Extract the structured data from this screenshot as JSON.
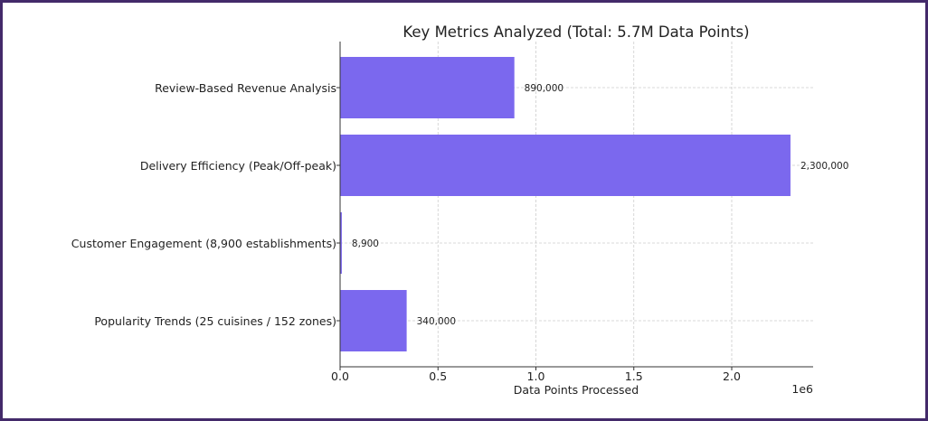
{
  "chart_data": {
    "type": "bar",
    "orientation": "horizontal",
    "title": "Key Metrics Analyzed (Total: 5.7M Data Points)",
    "xlabel": "Data Points Processed",
    "ylabel": "",
    "x_offset_label": "1e6",
    "categories": [
      "Review-Based Revenue Analysis",
      "Delivery Efficiency (Peak/Off-peak)",
      "Customer Engagement (8,900 establishments)",
      "Popularity Trends (25 cuisines / 152 zones)"
    ],
    "values": [
      890000,
      2300000,
      8900,
      340000
    ],
    "data_labels": [
      "890,000",
      "2,300,000",
      "8,900",
      "340,000"
    ],
    "xticks": [
      0,
      500000,
      1000000,
      1500000,
      2000000
    ],
    "xtick_labels": [
      "0.0",
      "0.5",
      "1.0",
      "1.5",
      "2.0"
    ],
    "xlim": [
      0,
      2415000
    ],
    "grid": true,
    "bar_color": "#7b68ee",
    "frame_color": "#432a6a"
  }
}
